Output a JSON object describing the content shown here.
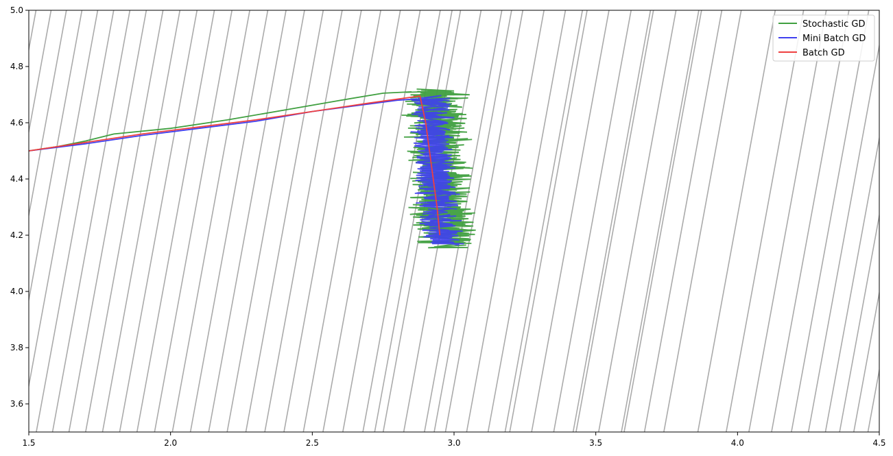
{
  "chart_data": {
    "type": "line",
    "title": "",
    "xlabel": "",
    "ylabel": "",
    "xlim": [
      1.5,
      4.5
    ],
    "ylim": [
      3.5,
      5.0
    ],
    "xticks": [
      "1.5",
      "2.0",
      "2.5",
      "3.0",
      "3.5",
      "4.0",
      "4.5"
    ],
    "yticks": [
      "3.6",
      "3.8",
      "4.0",
      "4.2",
      "4.4",
      "4.6",
      "4.8",
      "5.0"
    ],
    "legend_position": "top-right",
    "background_contours": {
      "color": "#aaaaaa",
      "description": "loss surface contour lines"
    },
    "series": [
      {
        "name": "Stochastic GD",
        "color": "#3f9f3f",
        "path": [
          [
            1.5,
            4.5
          ],
          [
            1.6,
            4.515
          ],
          [
            1.7,
            4.535
          ],
          [
            1.8,
            4.56
          ],
          [
            2.0,
            4.58
          ],
          [
            2.2,
            4.61
          ],
          [
            2.4,
            4.645
          ],
          [
            2.6,
            4.68
          ],
          [
            2.75,
            4.705
          ],
          [
            2.85,
            4.71
          ]
        ],
        "cloud_x": [
          2.82,
          3.08
        ],
        "cloud_y": [
          4.16,
          4.72
        ]
      },
      {
        "name": "Mini Batch GD",
        "color": "#3f3fef",
        "path": [
          [
            1.5,
            4.5
          ],
          [
            1.7,
            4.525
          ],
          [
            1.9,
            4.555
          ],
          [
            2.1,
            4.58
          ],
          [
            2.3,
            4.605
          ],
          [
            2.5,
            4.64
          ],
          [
            2.65,
            4.66
          ],
          [
            2.8,
            4.68
          ],
          [
            2.87,
            4.685
          ]
        ],
        "cloud_x": [
          2.85,
          3.02
        ],
        "cloud_y": [
          4.17,
          4.69
        ]
      },
      {
        "name": "Batch GD",
        "color": "#ef3f3f",
        "path": [
          [
            1.5,
            4.5
          ],
          [
            1.7,
            4.53
          ],
          [
            1.9,
            4.56
          ],
          [
            2.1,
            4.585
          ],
          [
            2.3,
            4.61
          ],
          [
            2.5,
            4.64
          ],
          [
            2.7,
            4.67
          ],
          [
            2.88,
            4.695
          ],
          [
            2.9,
            4.6
          ],
          [
            2.92,
            4.45
          ],
          [
            2.94,
            4.3
          ],
          [
            2.95,
            4.2
          ]
        ]
      }
    ]
  }
}
